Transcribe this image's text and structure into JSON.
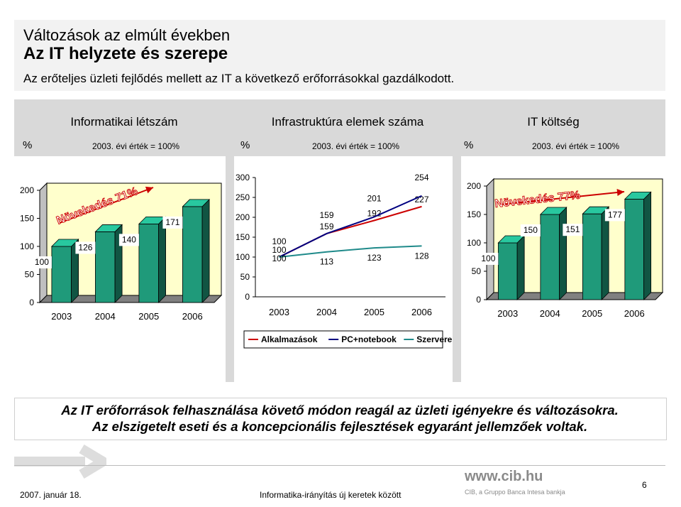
{
  "header": {
    "line1": "Változások az elmúlt években",
    "line2": "Az IT helyzete és szerepe",
    "intro": "Az erőteljes üzleti fejlődés mellett az IT a következő erőforrásokkal gazdálkodott."
  },
  "sections": [
    {
      "title": "Informatikai létszám",
      "pct": "%",
      "base": "2003. évi érték = 100%"
    },
    {
      "title": "Infrastruktúra elemek száma",
      "pct": "%",
      "base": "2003. évi érték = 100%"
    },
    {
      "title": "IT költség",
      "pct": "%",
      "base": "2003. évi érték = 100%"
    }
  ],
  "chart_data": [
    {
      "type": "bar",
      "title": "Informatikai létszám",
      "categories": [
        "2003",
        "2004",
        "2005",
        "2006"
      ],
      "values": [
        100,
        126,
        140,
        171
      ],
      "ylim": [
        0,
        200
      ],
      "yticks": [
        0,
        50,
        100,
        150,
        200
      ],
      "annotation": "Növekedés 71%",
      "bar_color": "#1f9a7a"
    },
    {
      "type": "line",
      "title": "Infrastruktúra elemek száma",
      "categories": [
        "2003",
        "2004",
        "2005",
        "2006"
      ],
      "ylim": [
        0,
        300
      ],
      "yticks": [
        0,
        50,
        100,
        150,
        200,
        250,
        300
      ],
      "series": [
        {
          "name": "Alkalmazások",
          "values": [
            100,
            159,
            192,
            227
          ],
          "color": "#cc0000"
        },
        {
          "name": "PC+notebook",
          "values": [
            100,
            159,
            201,
            254
          ],
          "color": "#000080"
        },
        {
          "name": "Szerverek",
          "values": [
            100,
            113,
            123,
            128
          ],
          "color": "#1f8a8a"
        }
      ],
      "legend": "bottom"
    },
    {
      "type": "bar",
      "title": "IT költség",
      "categories": [
        "2003",
        "2004",
        "2005",
        "2006"
      ],
      "values": [
        100,
        150,
        151,
        177
      ],
      "ylim": [
        0,
        200
      ],
      "yticks": [
        0,
        50,
        100,
        150,
        200
      ],
      "annotation": "Növekedés 77%",
      "bar_color": "#1f9a7a"
    }
  ],
  "conclusion": {
    "line1": "Az IT erőforrások felhasználása követő módon reagál az üzleti igényekre és változásokra.",
    "line2": "Az elszigetelt eseti és a koncepcionális fejlesztések egyaránt jellemzőek voltak."
  },
  "footer": {
    "date": "2007. január 18.",
    "title": "Informatika-irányítás új keretek között",
    "page": "6",
    "logo_url": "www.cib.hu",
    "logo_sub": "CIB, a Gruppo Banca Intesa bankja"
  }
}
